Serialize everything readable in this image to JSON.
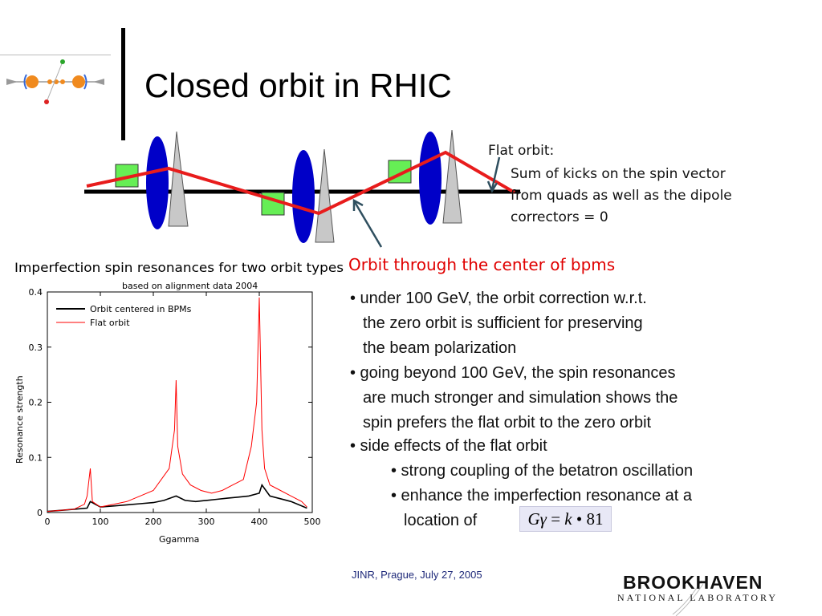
{
  "title": "Closed orbit in RHIC",
  "diagram": {
    "flat_orbit_heading": "Flat orbit:",
    "flat_orbit_lines": [
      "Sum of kicks on the spin vector",
      "from quads as well as the dipole",
      "correctors = 0"
    ],
    "center_orbit_label": "Orbit through the center of bpms",
    "colors": {
      "flat_orbit": "#e81c1c",
      "zero_orbit": "#000000",
      "quad": "#0000c8",
      "bpm": "#66ee55",
      "corrector": "#c8c8c8"
    }
  },
  "bullets": [
    {
      "lines": [
        "• under 100 GeV, the orbit correction w.r.t.",
        "the zero orbit is sufficient for preserving",
        "the beam polarization"
      ]
    },
    {
      "lines": [
        "• going beyond 100 GeV, the spin resonances",
        "are much stronger and simulation shows the",
        "spin prefers the flat orbit to the zero orbit"
      ]
    },
    {
      "lines": [
        "• side effects of the flat orbit"
      ]
    },
    {
      "lines": [
        "• strong coupling of the betatron oscillation"
      ]
    },
    {
      "lines": [
        "• enhance the imperfection resonance at a",
        "location of"
      ]
    }
  ],
  "formula": {
    "G": "G",
    "gamma": "γ",
    "eq": " = ",
    "k": "k",
    "dot": " • ",
    "n": "81"
  },
  "footer": "JINR, Prague, July 27, 2005",
  "brand": {
    "main": "BROOKHAVEN",
    "sub": "NATIONAL LABORATORY"
  },
  "chart_data": {
    "type": "line",
    "title": "Imperfection spin resonances for two orbit types",
    "subtitle": "based on alignment data 2004",
    "xlabel": "Ggamma",
    "ylabel": "Resonance strength",
    "xlim": [
      0,
      500
    ],
    "ylim": [
      0,
      0.4
    ],
    "xticks": [
      "0",
      "100",
      "200",
      "300",
      "400",
      "500"
    ],
    "yticks": [
      "0",
      "0.1",
      "0.2",
      "0.3",
      "0.4"
    ],
    "series": [
      {
        "name": "Orbit centered in BPMs",
        "color": "#000000",
        "x": [
          0,
          25,
          50,
          75,
          81,
          100,
          125,
          150,
          175,
          200,
          220,
          243,
          260,
          280,
          300,
          320,
          340,
          360,
          380,
          400,
          405,
          420,
          440,
          460,
          480,
          490
        ],
        "y": [
          0.002,
          0.004,
          0.006,
          0.008,
          0.02,
          0.01,
          0.012,
          0.014,
          0.016,
          0.018,
          0.022,
          0.03,
          0.022,
          0.02,
          0.022,
          0.024,
          0.026,
          0.028,
          0.03,
          0.035,
          0.05,
          0.03,
          0.025,
          0.02,
          0.012,
          0.008
        ]
      },
      {
        "name": "Flat orbit",
        "color": "#ff0000",
        "x": [
          0,
          25,
          50,
          70,
          75,
          81,
          85,
          100,
          125,
          150,
          175,
          200,
          215,
          230,
          240,
          243,
          246,
          255,
          270,
          290,
          310,
          330,
          350,
          370,
          385,
          395,
          400,
          405,
          410,
          420,
          440,
          460,
          480,
          490
        ],
        "y": [
          0.002,
          0.004,
          0.006,
          0.015,
          0.03,
          0.08,
          0.02,
          0.01,
          0.015,
          0.02,
          0.03,
          0.04,
          0.06,
          0.08,
          0.15,
          0.24,
          0.12,
          0.07,
          0.05,
          0.04,
          0.035,
          0.04,
          0.05,
          0.06,
          0.12,
          0.2,
          0.39,
          0.15,
          0.08,
          0.05,
          0.04,
          0.03,
          0.02,
          0.01
        ]
      }
    ]
  }
}
